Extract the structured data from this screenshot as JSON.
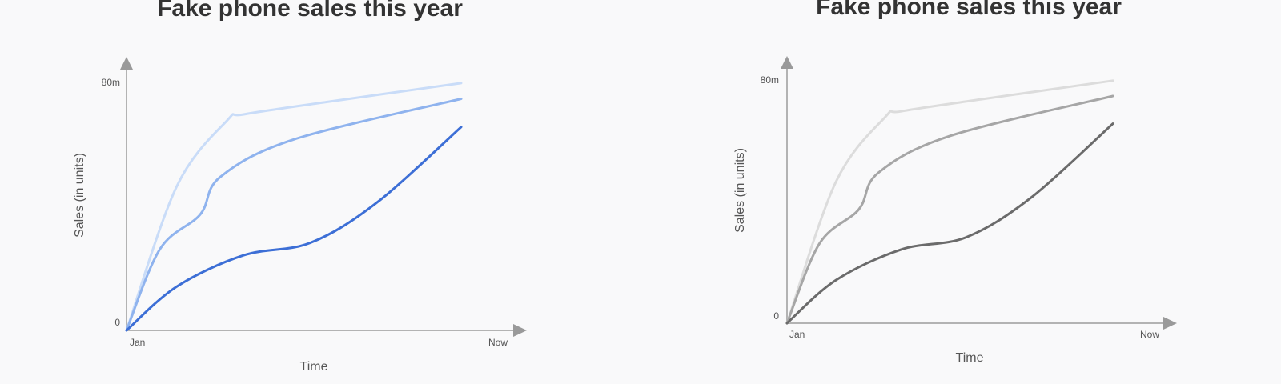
{
  "chart_data": [
    {
      "type": "line",
      "title": "Fake phone sales this year",
      "xlabel": "Time",
      "ylabel": "Sales (in units)",
      "x_ticks": [
        "Jan",
        "Now"
      ],
      "y_ticks": [
        "0",
        "80m"
      ],
      "xlim": [
        0,
        1
      ],
      "ylim": [
        0,
        80
      ],
      "grid": false,
      "legend": "none",
      "series": [
        {
          "color": "#c9dcf8",
          "x": [
            0,
            0.15,
            0.3,
            0.35,
            0.6,
            1
          ],
          "values": [
            0,
            46,
            67,
            69,
            73,
            79
          ]
        },
        {
          "color": "#8fb3ee",
          "x": [
            0,
            0.1,
            0.22,
            0.28,
            0.5,
            1
          ],
          "values": [
            0,
            26,
            37,
            49,
            61,
            74
          ]
        },
        {
          "color": "#3d6fd6",
          "x": [
            0,
            0.15,
            0.35,
            0.55,
            0.75,
            1
          ],
          "values": [
            0,
            14,
            24,
            28,
            41,
            65
          ]
        }
      ]
    },
    {
      "type": "line",
      "title": "Fake phone sales this year",
      "xlabel": "Time",
      "ylabel": "Sales (in units)",
      "x_ticks": [
        "Jan",
        "Now"
      ],
      "y_ticks": [
        "0",
        "80m"
      ],
      "xlim": [
        0,
        1
      ],
      "ylim": [
        0,
        80
      ],
      "grid": false,
      "legend": "none",
      "series": [
        {
          "color": "#dcdcdc",
          "x": [
            0,
            0.15,
            0.3,
            0.35,
            0.6,
            1
          ],
          "values": [
            0,
            46,
            67,
            69,
            73,
            79
          ]
        },
        {
          "color": "#a6a6a6",
          "x": [
            0,
            0.1,
            0.22,
            0.28,
            0.5,
            1
          ],
          "values": [
            0,
            26,
            37,
            49,
            61,
            74
          ]
        },
        {
          "color": "#6b6b6b",
          "x": [
            0,
            0.15,
            0.35,
            0.55,
            0.75,
            1
          ],
          "values": [
            0,
            14,
            24,
            28,
            41,
            65
          ]
        }
      ]
    }
  ]
}
